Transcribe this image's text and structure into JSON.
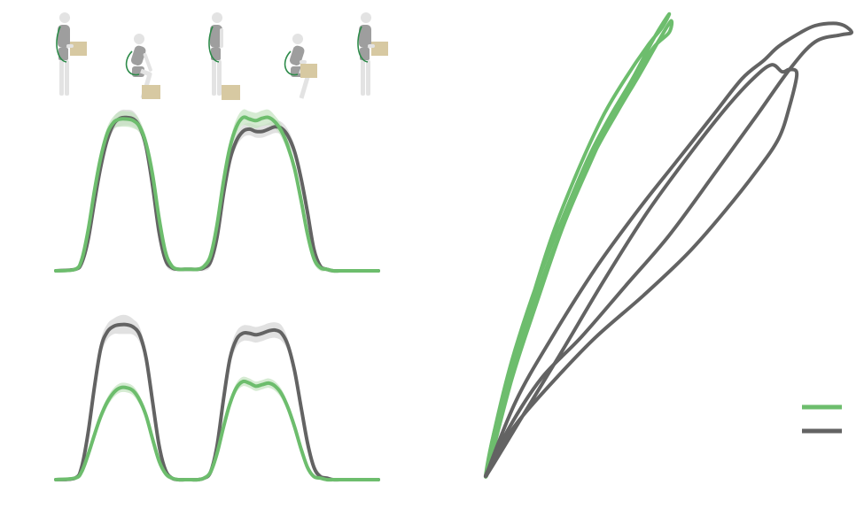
{
  "colors": {
    "green": "#6dbd6d",
    "gray": "#636363",
    "green_band": "#c3e3bf",
    "gray_band": "#d4d4d4",
    "body": "#e3e3e3",
    "body_dark": "#9e9e9e",
    "box": "#d7c9a2",
    "strap": "#2e8b4a"
  },
  "phase_icons": [
    "stand-holding-box",
    "squat-near-box",
    "stand-box-on-floor",
    "squat-holding-box",
    "stand-holding-box"
  ],
  "chart_data": [
    {
      "type": "line",
      "panel": "top-left",
      "title": "",
      "xlabel": "",
      "ylabel": "",
      "xlim": [
        0,
        100
      ],
      "ylim": [
        0,
        1
      ],
      "series": [
        {
          "name": "",
          "color_key": "gray",
          "x": [
            0,
            6,
            8,
            10,
            12,
            14,
            16,
            18,
            20,
            22,
            24,
            26,
            28,
            30,
            32,
            34,
            36,
            38,
            40,
            42,
            44,
            46,
            48,
            50,
            52,
            54,
            56,
            58,
            60,
            62,
            64,
            66,
            68,
            70,
            72,
            74,
            76,
            78,
            80,
            82,
            84,
            86,
            88,
            90,
            92,
            100
          ],
          "y": [
            0,
            0.01,
            0.05,
            0.2,
            0.45,
            0.68,
            0.85,
            0.95,
            0.985,
            0.99,
            0.98,
            0.93,
            0.8,
            0.55,
            0.25,
            0.07,
            0.02,
            0.01,
            0.01,
            0.01,
            0.01,
            0.02,
            0.06,
            0.22,
            0.5,
            0.72,
            0.84,
            0.9,
            0.915,
            0.9,
            0.9,
            0.915,
            0.93,
            0.92,
            0.87,
            0.77,
            0.6,
            0.38,
            0.14,
            0.03,
            0.01,
            0,
            0,
            0,
            0,
            0
          ],
          "spread": [
            0,
            0.01,
            0.02,
            0.03,
            0.04,
            0.04,
            0.04,
            0.04,
            0.05,
            0.05,
            0.05,
            0.04,
            0.04,
            0.04,
            0.04,
            0.03,
            0.02,
            0.01,
            0.01,
            0.01,
            0.01,
            0.02,
            0.03,
            0.04,
            0.04,
            0.04,
            0.04,
            0.04,
            0.04,
            0.04,
            0.04,
            0.04,
            0.04,
            0.04,
            0.04,
            0.04,
            0.04,
            0.04,
            0.03,
            0.02,
            0.01,
            0,
            0,
            0,
            0,
            0
          ]
        },
        {
          "name": "",
          "color_key": "green",
          "x": [
            0,
            6,
            8,
            10,
            12,
            14,
            16,
            18,
            20,
            22,
            24,
            26,
            28,
            30,
            32,
            34,
            36,
            38,
            40,
            42,
            44,
            46,
            48,
            50,
            52,
            54,
            56,
            58,
            60,
            62,
            64,
            66,
            68,
            70,
            72,
            74,
            76,
            78,
            80,
            82,
            84,
            86,
            88,
            90,
            92,
            100
          ],
          "y": [
            0,
            0.01,
            0.07,
            0.26,
            0.52,
            0.74,
            0.89,
            0.96,
            0.98,
            0.98,
            0.97,
            0.93,
            0.82,
            0.62,
            0.34,
            0.12,
            0.03,
            0.01,
            0.01,
            0.01,
            0.01,
            0.03,
            0.1,
            0.3,
            0.58,
            0.8,
            0.93,
            0.99,
            0.98,
            0.97,
            0.985,
            0.99,
            0.96,
            0.9,
            0.8,
            0.66,
            0.46,
            0.24,
            0.08,
            0.02,
            0.01,
            0,
            0,
            0,
            0,
            0
          ],
          "spread": [
            0,
            0.01,
            0.02,
            0.03,
            0.04,
            0.04,
            0.04,
            0.04,
            0.05,
            0.05,
            0.05,
            0.04,
            0.04,
            0.04,
            0.04,
            0.03,
            0.02,
            0.01,
            0.01,
            0.01,
            0.01,
            0.02,
            0.03,
            0.04,
            0.04,
            0.04,
            0.05,
            0.05,
            0.05,
            0.05,
            0.05,
            0.05,
            0.04,
            0.04,
            0.04,
            0.04,
            0.04,
            0.04,
            0.03,
            0.02,
            0.01,
            0,
            0,
            0,
            0,
            0
          ]
        }
      ]
    },
    {
      "type": "line",
      "panel": "bottom-left",
      "title": "",
      "xlabel": "",
      "ylabel": "",
      "xlim": [
        0,
        100
      ],
      "ylim": [
        0,
        1
      ],
      "series": [
        {
          "name": "",
          "color_key": "gray",
          "x": [
            0,
            6,
            8,
            10,
            12,
            14,
            16,
            18,
            20,
            22,
            24,
            26,
            28,
            30,
            32,
            34,
            36,
            38,
            40,
            42,
            44,
            46,
            48,
            50,
            52,
            54,
            56,
            58,
            60,
            62,
            64,
            66,
            68,
            70,
            72,
            74,
            76,
            78,
            80,
            82,
            84,
            86,
            88,
            90,
            92,
            100
          ],
          "y": [
            0,
            0.01,
            0.08,
            0.3,
            0.6,
            0.85,
            0.95,
            0.985,
            0.995,
            0.995,
            0.98,
            0.93,
            0.78,
            0.5,
            0.22,
            0.06,
            0.01,
            0,
            0,
            0,
            0,
            0.01,
            0.05,
            0.22,
            0.52,
            0.78,
            0.9,
            0.94,
            0.94,
            0.93,
            0.94,
            0.955,
            0.96,
            0.94,
            0.86,
            0.7,
            0.47,
            0.24,
            0.08,
            0.02,
            0.01,
            0,
            0,
            0,
            0,
            0
          ],
          "spread": [
            0,
            0.01,
            0.02,
            0.03,
            0.04,
            0.05,
            0.05,
            0.05,
            0.06,
            0.06,
            0.05,
            0.05,
            0.04,
            0.04,
            0.03,
            0.03,
            0.01,
            0,
            0,
            0,
            0,
            0.01,
            0.02,
            0.03,
            0.04,
            0.05,
            0.05,
            0.05,
            0.05,
            0.05,
            0.05,
            0.05,
            0.05,
            0.05,
            0.04,
            0.04,
            0.04,
            0.03,
            0.03,
            0.02,
            0.01,
            0,
            0,
            0,
            0,
            0
          ]
        },
        {
          "name": "",
          "color_key": "green",
          "x": [
            0,
            6,
            8,
            10,
            12,
            14,
            16,
            18,
            20,
            22,
            24,
            26,
            28,
            30,
            32,
            34,
            36,
            38,
            40,
            42,
            44,
            46,
            48,
            50,
            52,
            54,
            56,
            58,
            60,
            62,
            64,
            66,
            68,
            70,
            72,
            74,
            76,
            78,
            80,
            82,
            84,
            86,
            88,
            90,
            92,
            100
          ],
          "y": [
            0,
            0.01,
            0.05,
            0.16,
            0.29,
            0.41,
            0.5,
            0.56,
            0.59,
            0.59,
            0.57,
            0.51,
            0.41,
            0.26,
            0.12,
            0.04,
            0.01,
            0,
            0,
            0,
            0,
            0.01,
            0.05,
            0.17,
            0.34,
            0.49,
            0.59,
            0.63,
            0.62,
            0.6,
            0.61,
            0.62,
            0.6,
            0.55,
            0.46,
            0.34,
            0.2,
            0.08,
            0.02,
            0.01,
            0,
            0,
            0,
            0,
            0,
            0
          ],
          "spread": [
            0,
            0.01,
            0.02,
            0.03,
            0.03,
            0.03,
            0.03,
            0.03,
            0.03,
            0.03,
            0.03,
            0.03,
            0.03,
            0.03,
            0.02,
            0.02,
            0.01,
            0,
            0,
            0,
            0,
            0.01,
            0.02,
            0.03,
            0.03,
            0.03,
            0.03,
            0.03,
            0.03,
            0.03,
            0.03,
            0.03,
            0.03,
            0.03,
            0.03,
            0.03,
            0.02,
            0.02,
            0.01,
            0.01,
            0,
            0,
            0,
            0,
            0,
            0
          ]
        }
      ]
    },
    {
      "type": "line",
      "panel": "right",
      "title": "",
      "xlabel": "",
      "ylabel": "",
      "xlim": [
        0,
        1
      ],
      "ylim": [
        0,
        1
      ],
      "legend": "bottom-right",
      "series": [
        {
          "name": "",
          "color_key": "green",
          "loops": [
            {
              "x": [
                0,
                0.06,
                0.12,
                0.18,
                0.25,
                0.32,
                0.38,
                0.44,
                0.48,
                0.5,
                0.46,
                0.4,
                0.34,
                0.28,
                0.21,
                0.14,
                0.07,
                0.02,
                0
              ],
              "y": [
                0,
                0.2,
                0.37,
                0.52,
                0.66,
                0.78,
                0.86,
                0.93,
                0.97,
                1,
                0.95,
                0.86,
                0.78,
                0.69,
                0.56,
                0.42,
                0.25,
                0.09,
                0
              ]
            },
            {
              "x": [
                0,
                0.07,
                0.14,
                0.21,
                0.28,
                0.35,
                0.41,
                0.46,
                0.5,
                0.505,
                0.47,
                0.42,
                0.36,
                0.29,
                0.22,
                0.15,
                0.08,
                0.02,
                0
              ],
              "y": [
                0,
                0.21,
                0.38,
                0.54,
                0.67,
                0.79,
                0.87,
                0.93,
                0.96,
                0.985,
                0.94,
                0.87,
                0.79,
                0.69,
                0.56,
                0.42,
                0.26,
                0.09,
                0
              ]
            }
          ]
        },
        {
          "name": "",
          "color_key": "gray",
          "loops": [
            {
              "x": [
                0,
                0.08,
                0.18,
                0.3,
                0.42,
                0.52,
                0.62,
                0.7,
                0.76,
                0.8,
                0.86,
                0.9,
                0.95,
                0.98,
                1,
                0.97,
                0.9,
                0.83,
                0.74,
                0.63,
                0.5,
                0.38,
                0.26,
                0.15,
                0.06,
                0
              ],
              "y": [
                0,
                0.16,
                0.3,
                0.45,
                0.58,
                0.68,
                0.78,
                0.86,
                0.9,
                0.93,
                0.96,
                0.975,
                0.98,
                0.975,
                0.96,
                0.955,
                0.94,
                0.88,
                0.78,
                0.66,
                0.52,
                0.41,
                0.3,
                0.21,
                0.1,
                0
              ]
            },
            {
              "x": [
                0,
                0.1,
                0.2,
                0.32,
                0.44,
                0.56,
                0.66,
                0.73,
                0.78,
                0.81,
                0.83,
                0.85,
                0.83,
                0.8,
                0.74,
                0.65,
                0.55,
                0.43,
                0.3,
                0.19,
                0.09,
                0.03,
                0
              ],
              "y": [
                0,
                0.13,
                0.26,
                0.42,
                0.57,
                0.7,
                0.8,
                0.86,
                0.89,
                0.875,
                0.88,
                0.87,
                0.8,
                0.73,
                0.66,
                0.57,
                0.48,
                0.39,
                0.3,
                0.21,
                0.12,
                0.05,
                0
              ]
            }
          ]
        }
      ]
    }
  ]
}
